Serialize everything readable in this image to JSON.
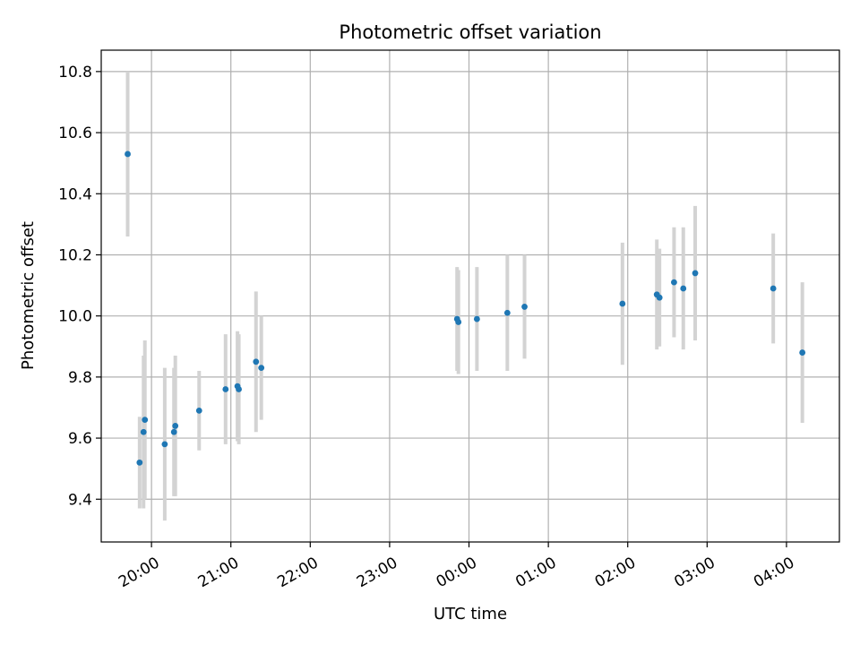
{
  "chart_data": {
    "type": "scatter",
    "title": "Photometric offset variation",
    "xlabel": "UTC time",
    "ylabel": "Photometric offset",
    "x_unit": "UTC time of night (20:00 on day 1 to 04:00 on day 2)",
    "xlim": [
      "19:22",
      "04:40"
    ],
    "ylim": [
      9.26,
      10.87
    ],
    "x_ticks": [
      "20:00",
      "21:00",
      "22:00",
      "23:00",
      "00:00",
      "01:00",
      "02:00",
      "03:00",
      "04:00"
    ],
    "y_ticks": [
      "9.4",
      "9.6",
      "9.8",
      "10.0",
      "10.2",
      "10.4",
      "10.6",
      "10.8"
    ],
    "y_tick_values": [
      9.4,
      9.6,
      9.8,
      10.0,
      10.2,
      10.4,
      10.6,
      10.8
    ],
    "grid": true,
    "legend": "none",
    "series": [
      {
        "points": [
          {
            "x": "19:42",
            "y": 10.53,
            "err": 0.27
          },
          {
            "x": "19:51",
            "y": 9.52,
            "err": 0.15
          },
          {
            "x": "19:54",
            "y": 9.62,
            "err": 0.25
          },
          {
            "x": "19:55",
            "y": 9.66,
            "err": 0.26
          },
          {
            "x": "20:10",
            "y": 9.58,
            "err": 0.25
          },
          {
            "x": "20:17",
            "y": 9.62,
            "err": 0.21
          },
          {
            "x": "20:18",
            "y": 9.64,
            "err": 0.23
          },
          {
            "x": "20:36",
            "y": 9.69,
            "err": 0.13
          },
          {
            "x": "20:56",
            "y": 9.76,
            "err": 0.18
          },
          {
            "x": "21:05",
            "y": 9.77,
            "err": 0.18
          },
          {
            "x": "21:06",
            "y": 9.76,
            "err": 0.18
          },
          {
            "x": "21:19",
            "y": 9.85,
            "err": 0.23
          },
          {
            "x": "21:23",
            "y": 9.83,
            "err": 0.17
          },
          {
            "x": "23:51",
            "y": 9.99,
            "err": 0.17
          },
          {
            "x": "23:52",
            "y": 9.98,
            "err": 0.17
          },
          {
            "x": "00:06",
            "y": 9.99,
            "err": 0.17
          },
          {
            "x": "00:29",
            "y": 10.01,
            "err": 0.19
          },
          {
            "x": "00:42",
            "y": 10.03,
            "err": 0.17
          },
          {
            "x": "01:56",
            "y": 10.04,
            "err": 0.2
          },
          {
            "x": "02:22",
            "y": 10.07,
            "err": 0.18
          },
          {
            "x": "02:24",
            "y": 10.06,
            "err": 0.16
          },
          {
            "x": "02:35",
            "y": 10.11,
            "err": 0.18
          },
          {
            "x": "02:42",
            "y": 10.09,
            "err": 0.2
          },
          {
            "x": "02:51",
            "y": 10.14,
            "err": 0.22
          },
          {
            "x": "03:50",
            "y": 10.09,
            "err": 0.18
          },
          {
            "x": "04:12",
            "y": 9.88,
            "err": 0.23
          }
        ]
      }
    ]
  },
  "colors": {
    "marker": "#1f77b4",
    "errorbar": "#d3d3d3",
    "grid": "#b0b0b0",
    "axes": "#000000",
    "background": "#ffffff"
  }
}
